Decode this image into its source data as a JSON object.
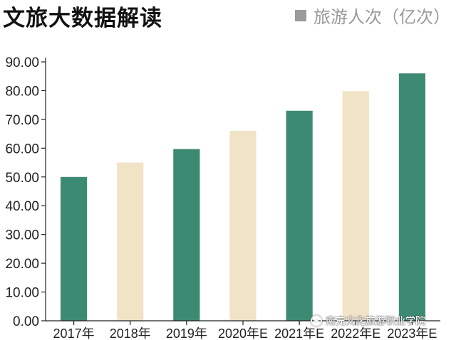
{
  "header": {
    "title": "文旅大数据解读",
    "legend_label": "旅游人次（亿次）"
  },
  "watermark": {
    "text": "南充文化旅游职业学院",
    "icon": "wechat-logo-icon"
  },
  "colors": {
    "actual": "#3d8a73",
    "alternate": "#f0e3c6",
    "axis": "#222222",
    "legend": "#9a9a9a"
  },
  "chart_data": {
    "type": "bar",
    "title": "文旅大数据解读",
    "xlabel": "",
    "ylabel": "",
    "series": [
      {
        "name": "旅游人次（亿次）",
        "values": [
          50.0,
          55.0,
          59.7,
          66.0,
          73.0,
          79.8,
          86.0
        ]
      }
    ],
    "categories": [
      "2017年",
      "2018年",
      "2019年",
      "2020年E",
      "2021年E",
      "2022年E",
      "2023年E"
    ],
    "bar_colors": [
      "#3d8a73",
      "#f0e3c6",
      "#3d8a73",
      "#f0e3c6",
      "#3d8a73",
      "#f0e3c6",
      "#3d8a73"
    ],
    "ylim": [
      0,
      90
    ],
    "yticks": [
      "0.00",
      "10.00",
      "20.00",
      "30.00",
      "40.00",
      "50.00",
      "60.00",
      "70.00",
      "80.00",
      "90.00"
    ],
    "grid": false,
    "legend_position": "top-right"
  }
}
